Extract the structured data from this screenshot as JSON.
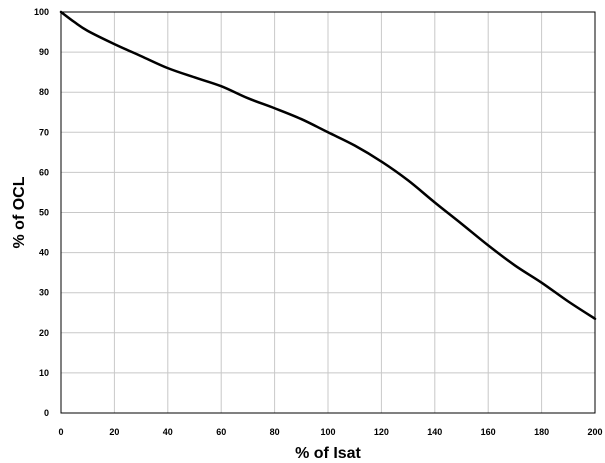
{
  "chart_data": {
    "type": "line",
    "title": "",
    "xlabel": "% of Isat",
    "ylabel": "% of OCL",
    "xlim": [
      0,
      200
    ],
    "ylim": [
      0,
      100
    ],
    "xticks": [
      0,
      20,
      40,
      60,
      80,
      100,
      120,
      140,
      160,
      180,
      200
    ],
    "yticks": [
      0,
      10,
      20,
      30,
      40,
      50,
      60,
      70,
      80,
      90,
      100
    ],
    "grid": true,
    "legend": "none",
    "colors": {
      "line": "#000000",
      "grid": "#c8c8c8",
      "frame": "#000000"
    },
    "series": [
      {
        "x": [
          0,
          5,
          10,
          20,
          30,
          40,
          50,
          60,
          70,
          80,
          90,
          100,
          110,
          120,
          130,
          140,
          150,
          160,
          170,
          180,
          190,
          200
        ],
        "y": [
          100,
          97.5,
          95.3,
          92,
          89,
          86,
          83.7,
          81.5,
          78.5,
          76,
          73.3,
          70,
          66.7,
          62.7,
          58,
          52.5,
          47.2,
          41.8,
          36.8,
          32.5,
          27.8,
          23.5
        ]
      }
    ]
  }
}
